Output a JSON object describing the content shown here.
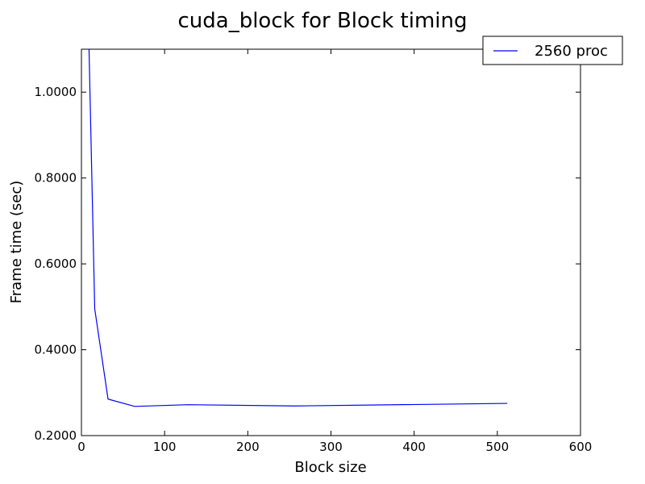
{
  "chart_data": {
    "type": "line",
    "title": "cuda_block for Block timing",
    "xlabel": "Block size",
    "ylabel": "Frame time (sec)",
    "xlim": [
      0,
      600
    ],
    "ylim": [
      0.2,
      1.1
    ],
    "xticks": [
      0,
      100,
      200,
      300,
      400,
      500,
      600
    ],
    "xtick_labels": [
      "0",
      "100",
      "200",
      "300",
      "400",
      "500",
      "600"
    ],
    "yticks": [
      0.2,
      0.4,
      0.6,
      0.8,
      1.0
    ],
    "ytick_labels": [
      "0.2000",
      "0.4000",
      "0.6000",
      "0.8000",
      "1.0000"
    ],
    "grid": false,
    "legend_position": "top-right",
    "series": [
      {
        "name": "2560 proc",
        "color": "#0000ff",
        "x": [
          8,
          16,
          32,
          64,
          128,
          256,
          512
        ],
        "y": [
          1.2,
          0.495,
          0.285,
          0.268,
          0.272,
          0.269,
          0.275
        ]
      }
    ]
  }
}
